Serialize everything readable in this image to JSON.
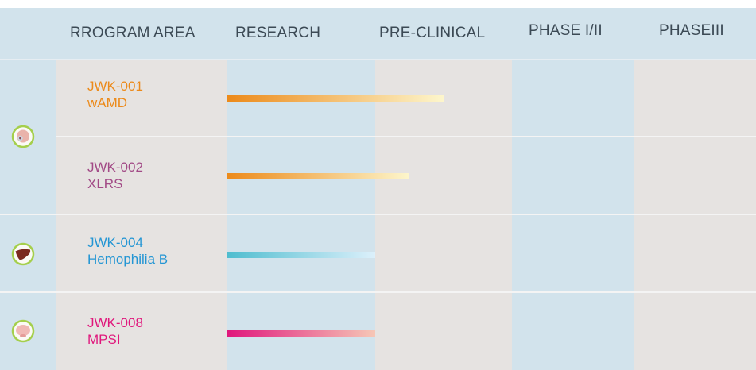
{
  "headers": {
    "program_area": "RROGRAM AREA",
    "research": "RESEARCH",
    "preclinical": "PRE-CLINICAL",
    "phase12": "PHASE I/II",
    "phase3": "PHASEIII"
  },
  "colors": {
    "header_bg": "#d2e3ec",
    "blue_col": "#d2e3ec",
    "grey_col": "#e6e3e1",
    "icon_ring": "#a5cf4c"
  },
  "programs": [
    {
      "code": "JWK-001",
      "indication": "wAMD",
      "color": "#ec8a1a",
      "stage_progress": 0.5,
      "icon": "eye-icon"
    },
    {
      "code": "JWK-002",
      "indication": "XLRS",
      "color": "#a24a86",
      "stage_progress": 0.25,
      "icon": "eye-icon"
    },
    {
      "code": "JWK-004",
      "indication": "Hemophilia B",
      "color": "#2496d4",
      "stage_progress": 0.0,
      "icon": "liver-icon"
    },
    {
      "code": "JWK-008",
      "indication": "MPSI",
      "color": "#e0177c",
      "stage_progress": 0.0,
      "icon": "brain-icon"
    }
  ],
  "chart_data": {
    "type": "bar",
    "stages": [
      "RESEARCH",
      "PRE-CLINICAL",
      "PHASE I/II",
      "PHASEIII"
    ],
    "categories": [
      "JWK-001 wAMD",
      "JWK-002 XLRS",
      "JWK-004 Hemophilia B",
      "JWK-008 MPSI"
    ],
    "series": [
      {
        "values": [
          1.5,
          1.25,
          1.0,
          1.0
        ]
      }
    ],
    "xlim": [
      0,
      4
    ],
    "bar_gradients": [
      [
        "#ec8a1a",
        "#fdf6cc"
      ],
      [
        "#ec8a1a",
        "#fdf6cc"
      ],
      [
        "#4fbdcf",
        "#dcf0fb"
      ],
      [
        "#e0177c",
        "#f6c7b6"
      ]
    ],
    "grid": false
  }
}
